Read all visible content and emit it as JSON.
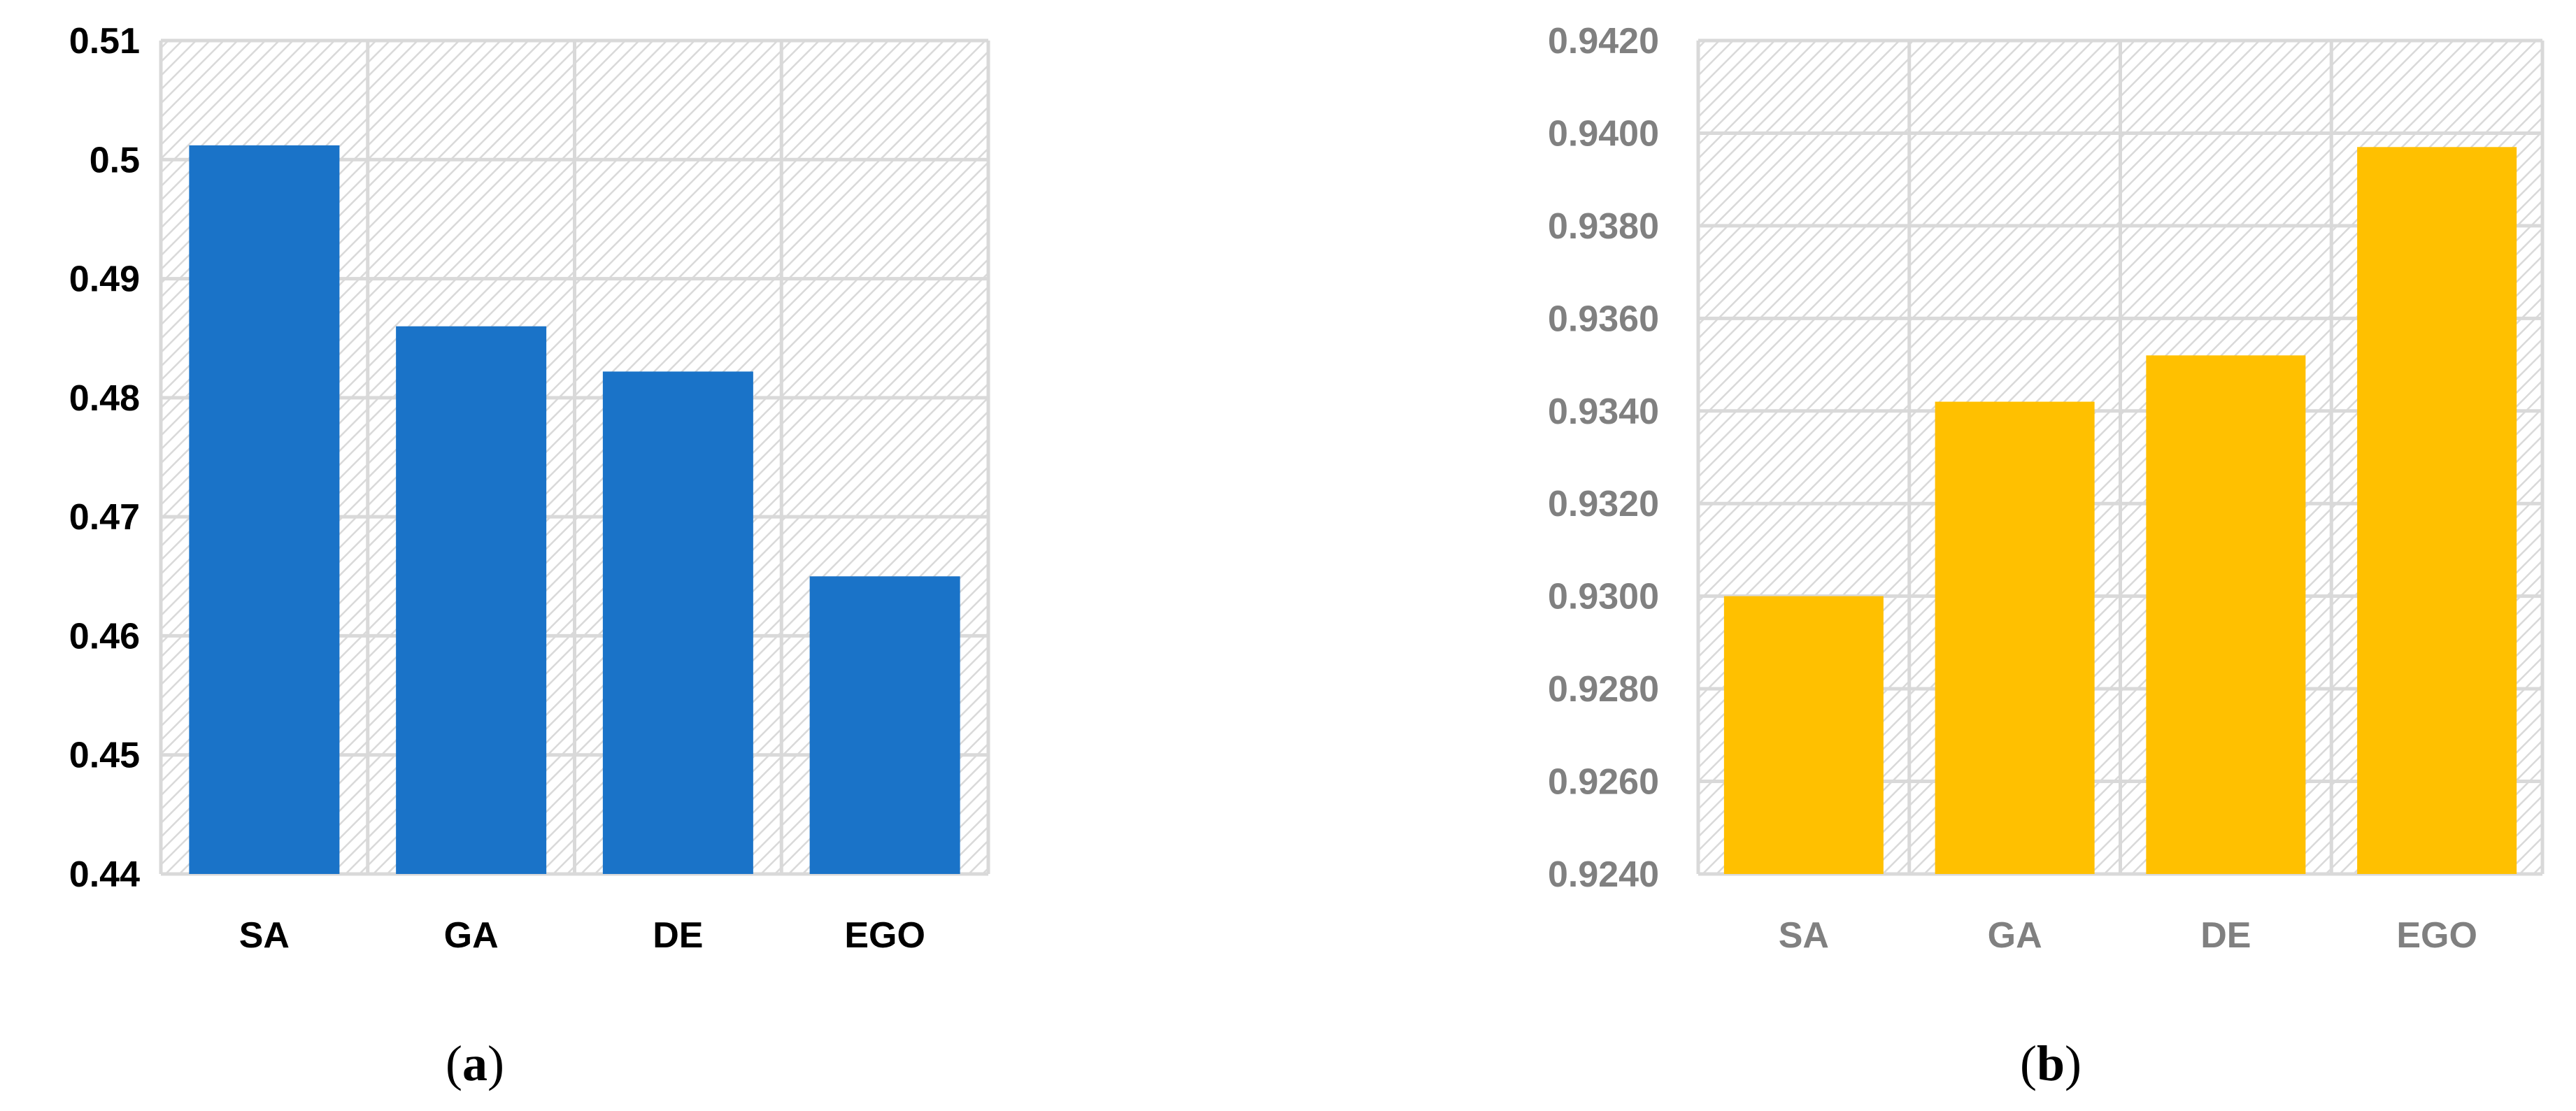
{
  "chart_data": [
    {
      "type": "bar",
      "categories": [
        "SA",
        "GA",
        "DE",
        "EGO"
      ],
      "values": [
        0.5012,
        0.486,
        0.4822,
        0.465
      ],
      "ylim": [
        0.44,
        0.51
      ],
      "yticks": [
        "0.44",
        "0.45",
        "0.46",
        "0.47",
        "0.48",
        "0.49",
        "0.5",
        "0.51"
      ],
      "grid": true,
      "legend": "none",
      "bar_color": "#1a73c8",
      "label_color": "#000000",
      "caption_prefix": "(",
      "caption_letter": "a",
      "caption_suffix": ")"
    },
    {
      "type": "bar",
      "categories": [
        "SA",
        "GA",
        "DE",
        "EGO"
      ],
      "values": [
        0.93,
        0.9342,
        0.9352,
        0.9397
      ],
      "ylim": [
        0.924,
        0.942
      ],
      "yticks": [
        "0.9240",
        "0.9260",
        "0.9280",
        "0.9300",
        "0.9320",
        "0.9340",
        "0.9360",
        "0.9380",
        "0.9400",
        "0.9420"
      ],
      "grid": true,
      "legend": "none",
      "bar_color": "#ffc000",
      "label_color": "#808080",
      "caption_prefix": "(",
      "caption_letter": "b",
      "caption_suffix": ")"
    }
  ]
}
